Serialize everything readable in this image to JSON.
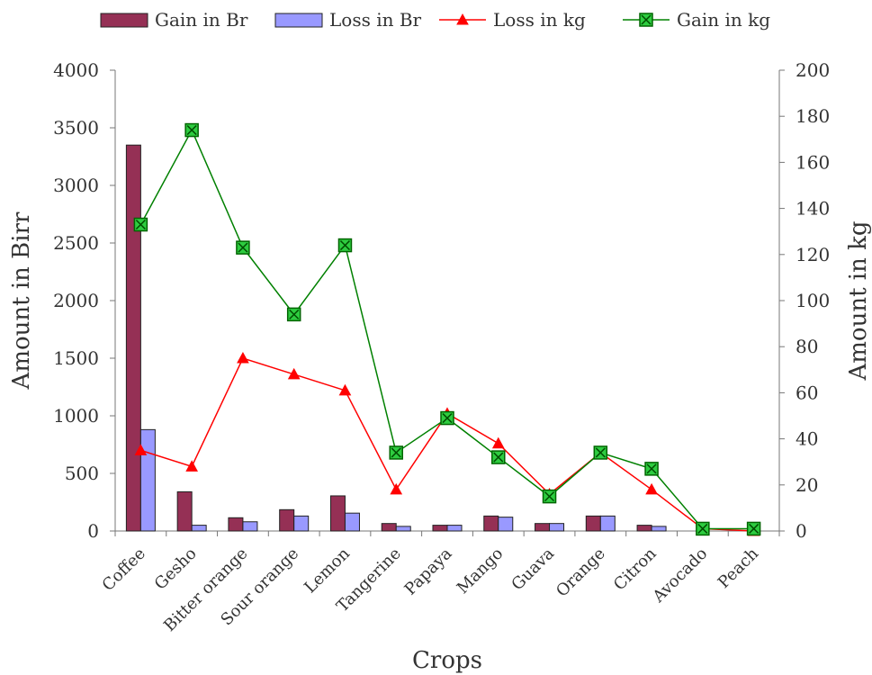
{
  "chart_data": {
    "type": "bar",
    "title": "",
    "xlabel": "Crops",
    "ylabel": "Amount in Birr",
    "y2label": "Amount in kg",
    "ylim": [
      0,
      4000
    ],
    "y2lim": [
      0,
      200
    ],
    "yticks": [
      "0",
      "500",
      "1000",
      "1500",
      "2000",
      "2500",
      "3000",
      "3500",
      "4000"
    ],
    "y2ticks": [
      "0",
      "20",
      "40",
      "60",
      "80",
      "100",
      "120",
      "140",
      "160",
      "180",
      "200"
    ],
    "categories": [
      "Coffee",
      "Gesho",
      "Bitter orange",
      "Sour orange",
      "Lemon",
      "Tangerine",
      "Papaya",
      "Mango",
      "Guava",
      "Orange",
      "Citron",
      "Avocado",
      "Peach"
    ],
    "legend_position": "top",
    "series": [
      {
        "name": "Gain in Br",
        "kind": "bar",
        "axis": "left",
        "color": "#953055",
        "values": [
          3350,
          340,
          115,
          185,
          305,
          65,
          50,
          130,
          65,
          130,
          50,
          0,
          0
        ]
      },
      {
        "name": "Loss in Br",
        "kind": "bar",
        "axis": "left",
        "color": "#9999FF",
        "values": [
          880,
          50,
          80,
          130,
          155,
          40,
          50,
          120,
          65,
          130,
          40,
          0,
          0
        ]
      },
      {
        "name": "Loss in kg",
        "kind": "line",
        "axis": "right",
        "color": "#FF0000",
        "marker": "triangle",
        "values": [
          35,
          28,
          75,
          68,
          61,
          18,
          51,
          38,
          16,
          34,
          18,
          1,
          0
        ]
      },
      {
        "name": "Gain in kg",
        "kind": "line",
        "axis": "right",
        "color": "#008000",
        "marker": "square-x",
        "values": [
          133,
          174,
          123,
          94,
          124,
          34,
          49,
          32,
          15,
          34,
          27,
          1,
          1
        ]
      }
    ]
  }
}
